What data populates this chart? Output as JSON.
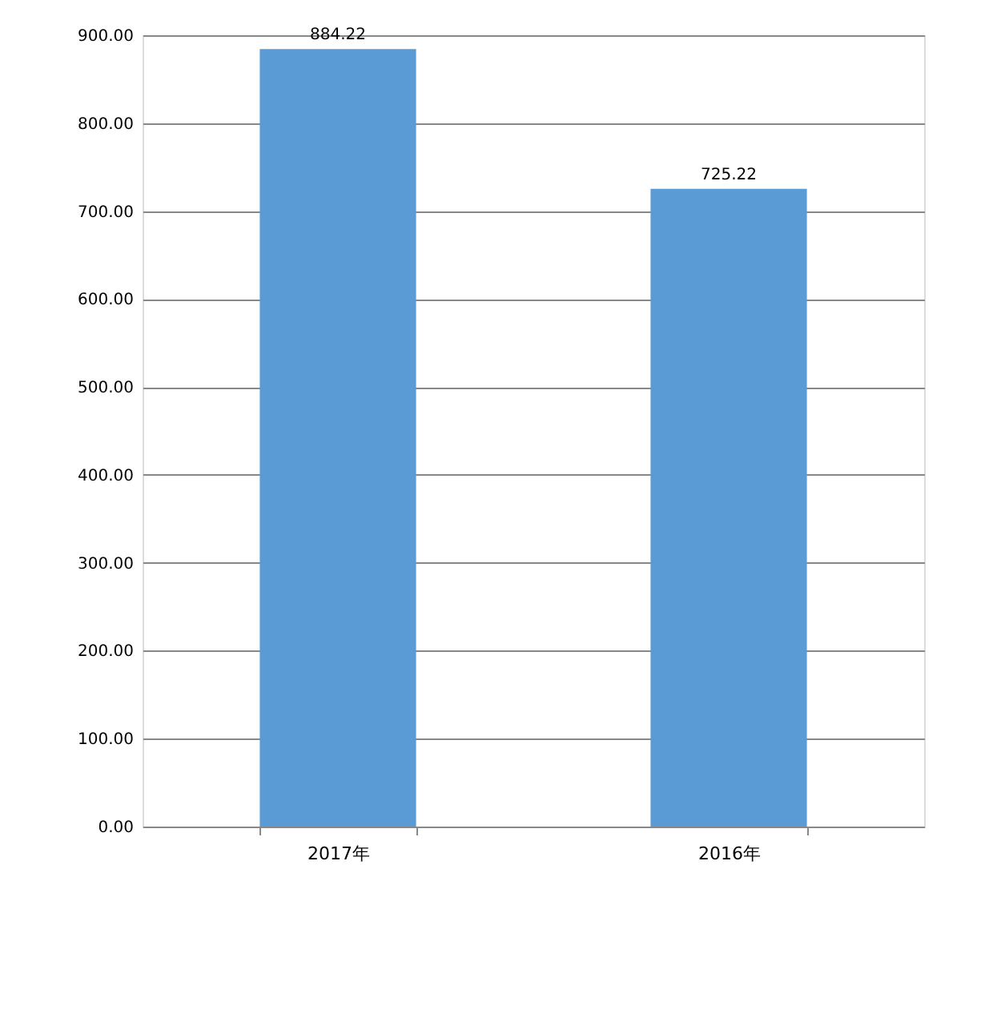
{
  "chart_data": {
    "type": "bar",
    "categories": [
      "2017年",
      "2016年"
    ],
    "values": [
      884.22,
      725.22
    ],
    "color": "#5b9bd5",
    "ylim": [
      0,
      900
    ],
    "yticks": [
      {
        "value": 0,
        "label": "0.00"
      },
      {
        "value": 100,
        "label": "100.00"
      },
      {
        "value": 200,
        "label": "200.00"
      },
      {
        "value": 300,
        "label": "300.00"
      },
      {
        "value": 400,
        "label": "400.00"
      },
      {
        "value": 500,
        "label": "500.00"
      },
      {
        "value": 600,
        "label": "600.00"
      },
      {
        "value": 700,
        "label": "700.00"
      },
      {
        "value": 800,
        "label": "800.00"
      },
      {
        "value": 900,
        "label": "900.00"
      }
    ],
    "grid": "y",
    "data_labels": true
  }
}
